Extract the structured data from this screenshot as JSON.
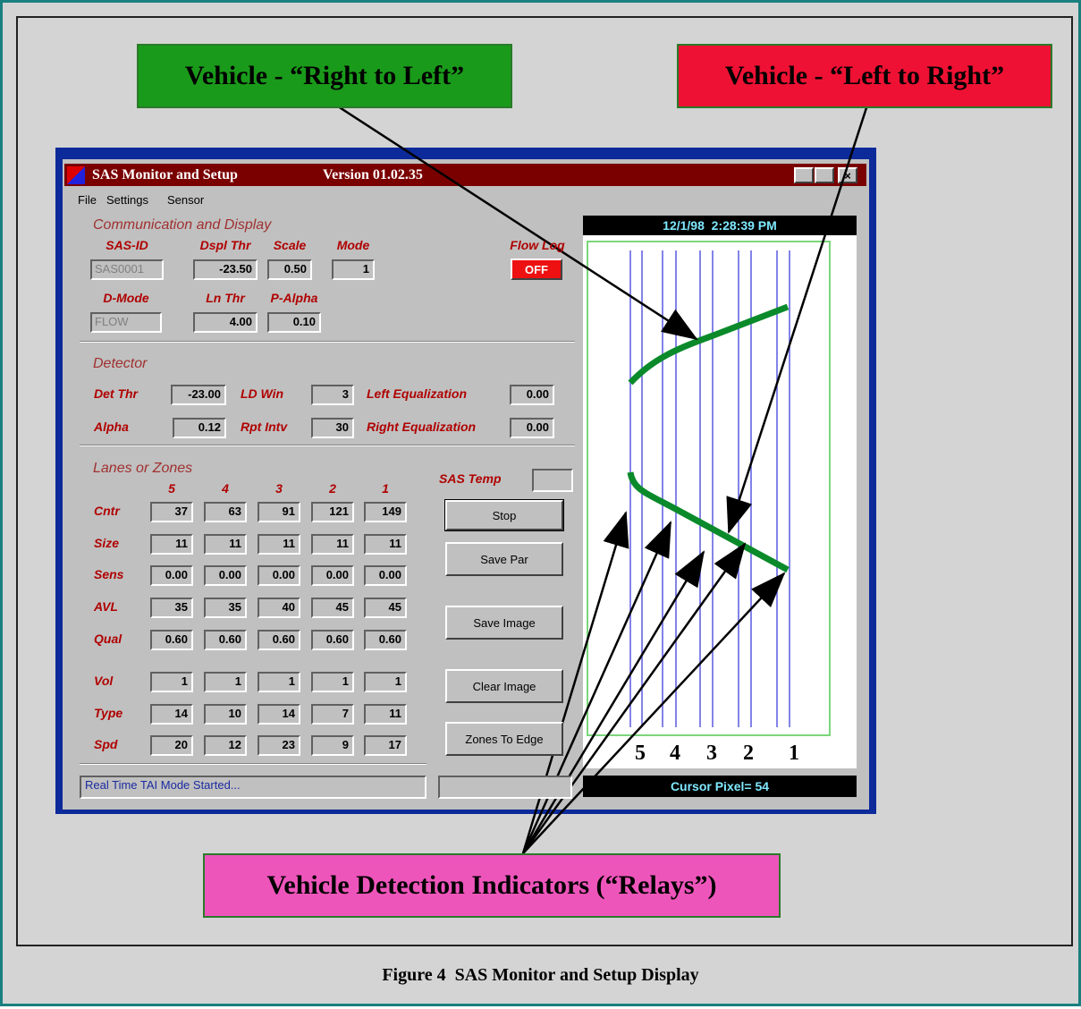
{
  "callouts": {
    "right_to_left": "Vehicle - “Right to Left”",
    "left_to_right": "Vehicle - “Left to Right”",
    "relays": "Vehicle Detection Indicators (“Relays”)"
  },
  "caption": "Figure 4  SAS Monitor and Setup Display",
  "window": {
    "title": "SAS Monitor and Setup",
    "version": "Version 01.02.35",
    "menu": [
      "File",
      "Settings",
      "Sensor"
    ],
    "communication": {
      "label": "Communication and Display",
      "fields": [
        {
          "label": "SAS-ID",
          "value": "SAS0001"
        },
        {
          "label": "Dspl Thr",
          "value": "-23.50"
        },
        {
          "label": "Scale",
          "value": "0.50"
        },
        {
          "label": "Mode",
          "value": "1"
        },
        {
          "label": "D-Mode",
          "value": "FLOW"
        },
        {
          "label": "Ln Thr",
          "value": "4.00"
        },
        {
          "label": "P-Alpha",
          "value": "0.10"
        }
      ],
      "flow_log": {
        "label": "Flow Log",
        "value": "OFF"
      }
    },
    "detector": {
      "label": "Detector",
      "fields": [
        {
          "label": "Det Thr",
          "value": "-23.00"
        },
        {
          "label": "LD Win",
          "value": "3"
        },
        {
          "label": "Left Equalization",
          "value": "0.00"
        },
        {
          "label": "Alpha",
          "value": "0.12"
        },
        {
          "label": "Rpt Intv",
          "value": "30"
        },
        {
          "label": "Right Equalization",
          "value": "0.00"
        }
      ]
    },
    "lanes": {
      "label": "Lanes or Zones",
      "columns": [
        "5",
        "4",
        "3",
        "2",
        "1"
      ],
      "rows": [
        {
          "label": "Cntr",
          "values": [
            "37",
            "63",
            "91",
            "121",
            "149"
          ]
        },
        {
          "label": "Size",
          "values": [
            "11",
            "11",
            "11",
            "11",
            "11"
          ]
        },
        {
          "label": "Sens",
          "values": [
            "0.00",
            "0.00",
            "0.00",
            "0.00",
            "0.00"
          ]
        },
        {
          "label": "AVL",
          "values": [
            "35",
            "35",
            "40",
            "45",
            "45"
          ]
        },
        {
          "label": "Qual",
          "values": [
            "0.60",
            "0.60",
            "0.60",
            "0.60",
            "0.60"
          ]
        },
        {
          "label": "Vol",
          "values": [
            "1",
            "1",
            "1",
            "1",
            "1"
          ]
        },
        {
          "label": "Type",
          "values": [
            "14",
            "10",
            "14",
            "7",
            "11"
          ]
        },
        {
          "label": "Spd",
          "values": [
            "20",
            "12",
            "23",
            "9",
            "17"
          ]
        }
      ]
    },
    "sas_temp": "SAS Temp",
    "buttons": [
      "Stop",
      "Save Par",
      "Save Image",
      "Clear Image",
      "Zones To Edge"
    ],
    "status": "Real Time TAI Mode Started...",
    "timestamp": "12/1/98  2:28:39 PM",
    "cursor": "Cursor Pixel= 54",
    "lane_numbers": [
      "5",
      "4",
      "3",
      "2",
      "1"
    ]
  }
}
